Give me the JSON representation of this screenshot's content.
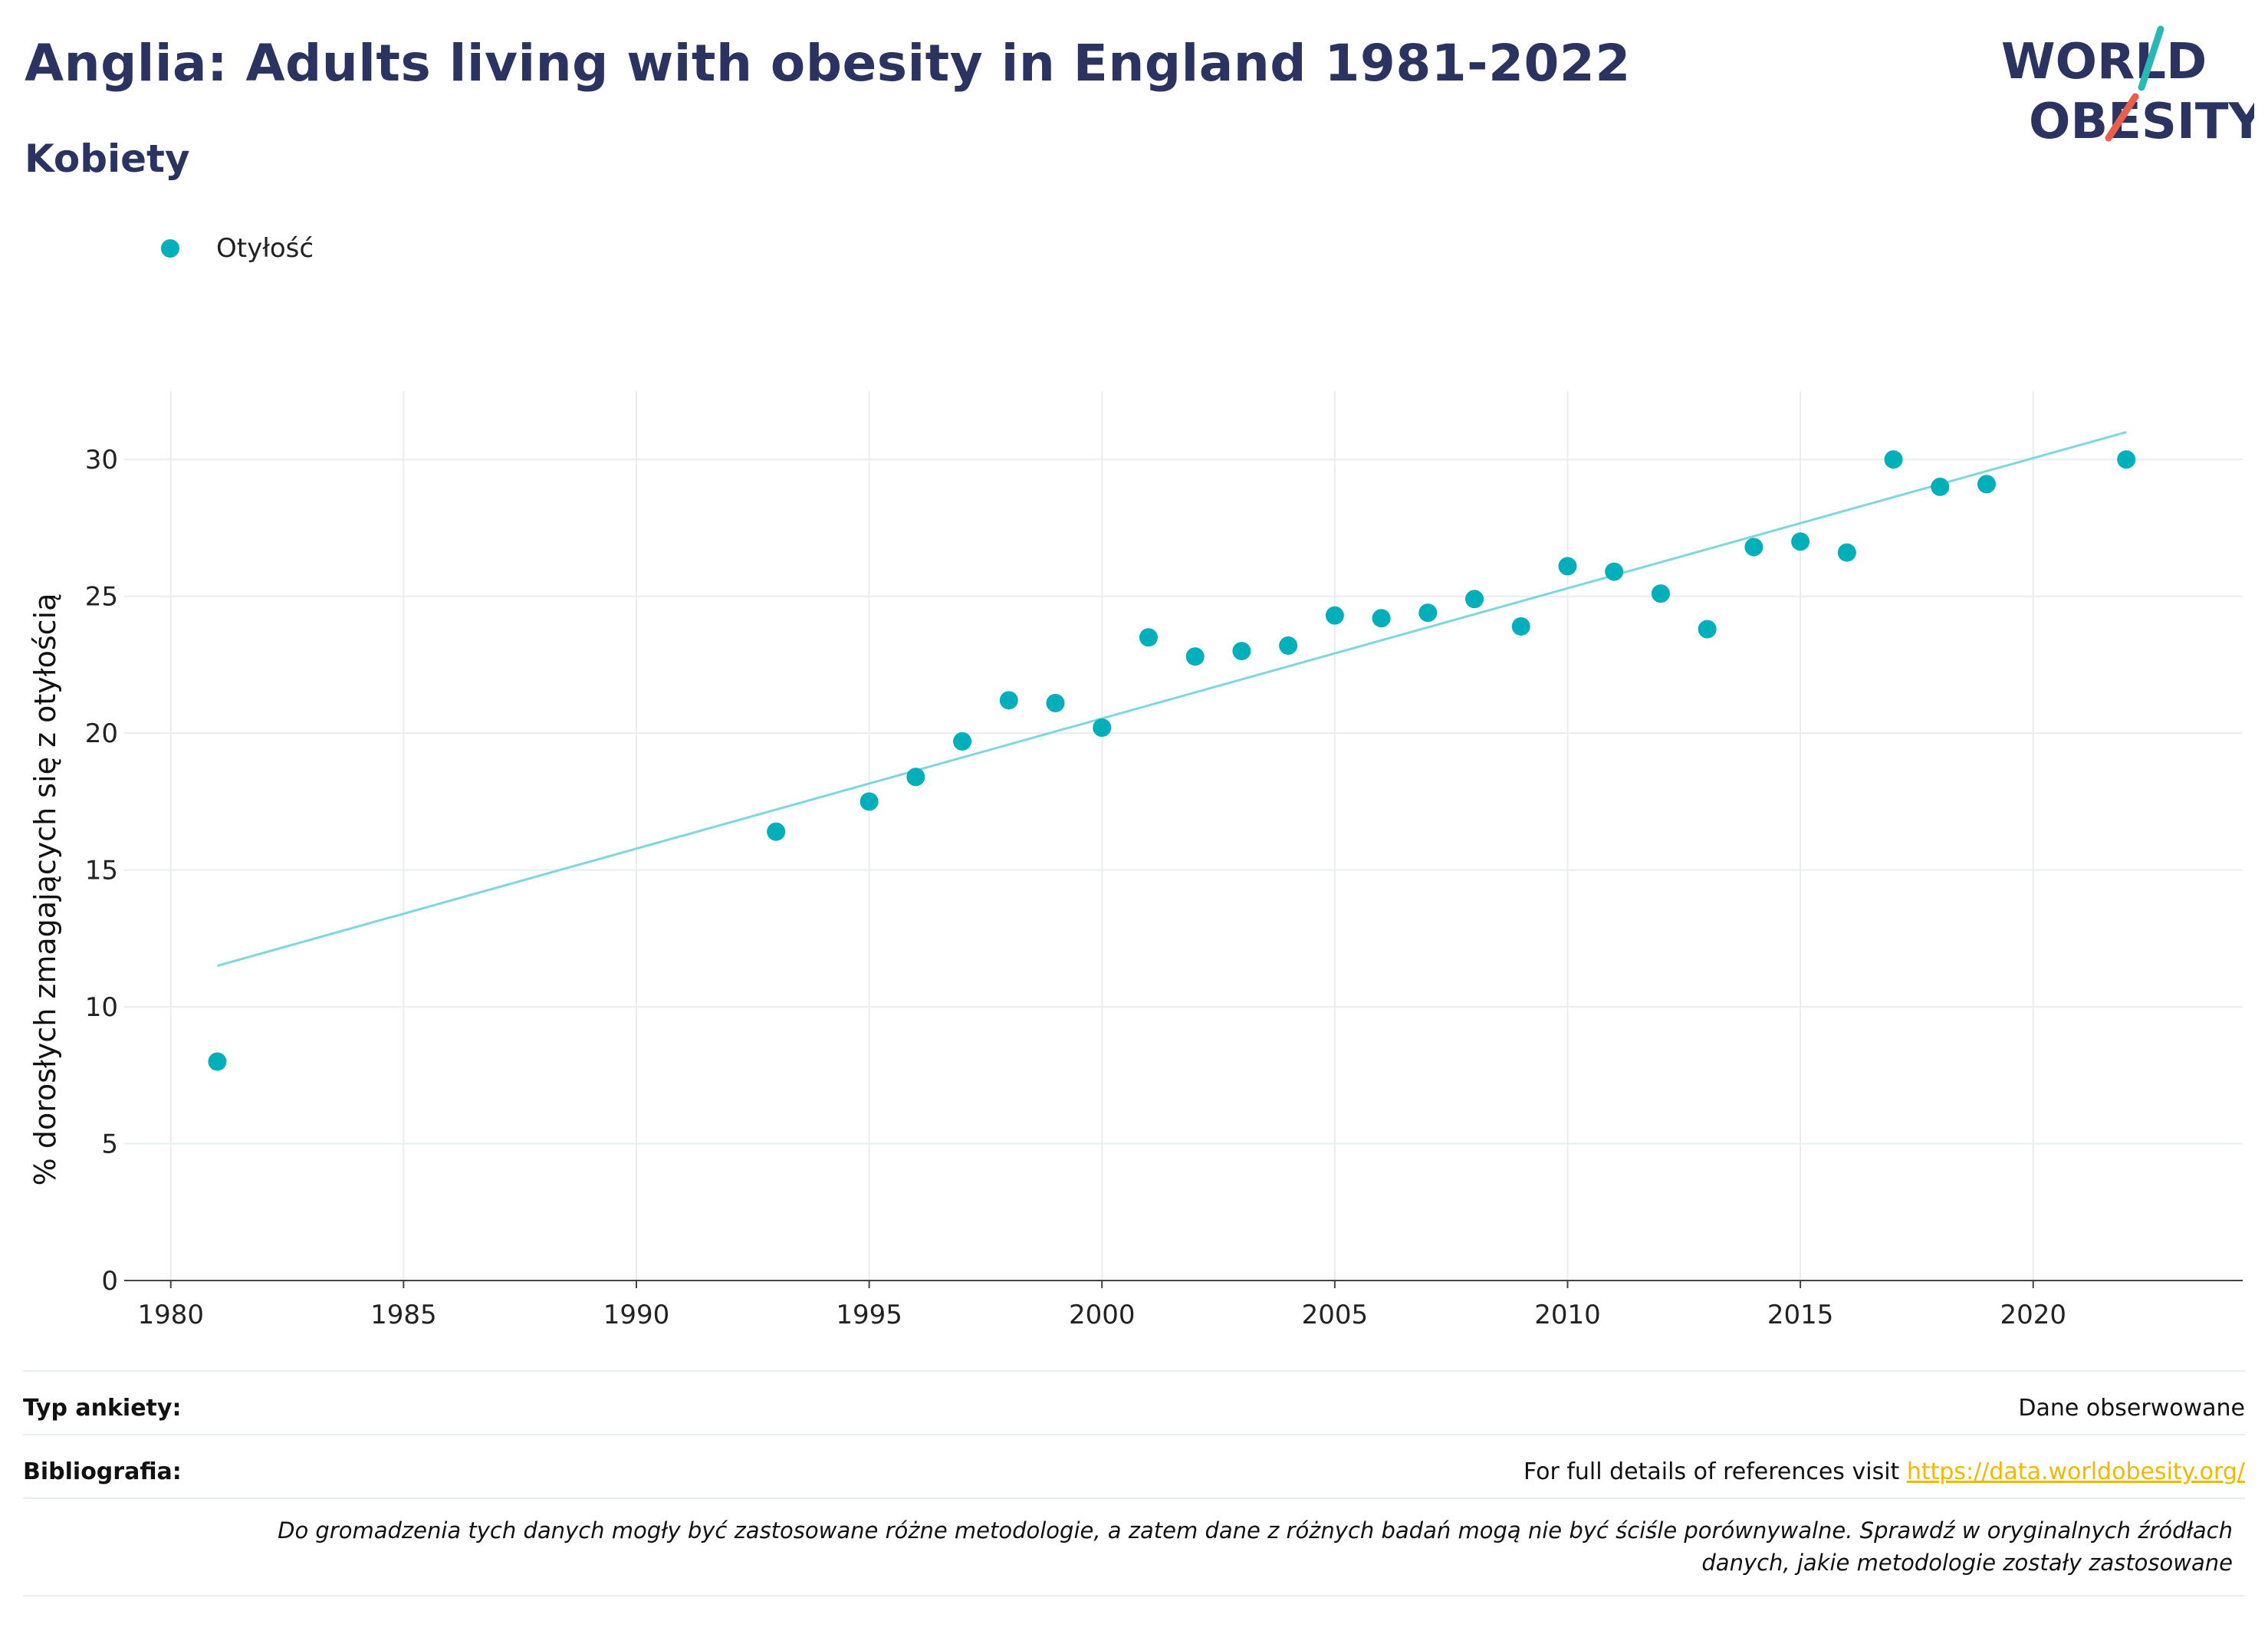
{
  "header": {
    "title": "Anglia: Adults living with obesity in England 1981-2022",
    "subtitle": "Kobiety"
  },
  "logo": {
    "line1": "WORLD",
    "line2": "OBESITY",
    "accent_teal": "#2bb7b3",
    "accent_red": "#e8604c",
    "text_color": "#2b3461"
  },
  "legend": {
    "items": [
      {
        "label": "Otyłość",
        "color": "#00afba"
      }
    ]
  },
  "chart_data": {
    "type": "scatter",
    "title": "Anglia: Adults living with obesity in England 1981-2022",
    "subtitle": "Kobiety",
    "xlabel": "",
    "ylabel": "% dorosłych zmagających się z otyłością",
    "xlim": [
      1979,
      2024.5
    ],
    "ylim": [
      0,
      32.5
    ],
    "x_ticks": [
      1980,
      1985,
      1990,
      1995,
      2000,
      2005,
      2010,
      2015,
      2020
    ],
    "y_ticks": [
      0,
      5,
      10,
      15,
      20,
      25,
      30
    ],
    "grid": true,
    "legend_position": "top-left",
    "series": [
      {
        "name": "Otyłość",
        "color": "#00afba",
        "x": [
          1981,
          1993,
          1995,
          1996,
          1997,
          1998,
          1999,
          2000,
          2001,
          2002,
          2003,
          2004,
          2005,
          2006,
          2007,
          2008,
          2009,
          2010,
          2011,
          2012,
          2013,
          2014,
          2015,
          2016,
          2017,
          2018,
          2019,
          2022
        ],
        "y": [
          8.0,
          16.4,
          17.5,
          18.4,
          19.7,
          21.2,
          21.1,
          20.2,
          23.5,
          22.8,
          23.0,
          23.2,
          24.3,
          24.2,
          24.4,
          24.9,
          23.9,
          26.1,
          25.9,
          25.1,
          23.8,
          26.8,
          27.0,
          26.6,
          30.0,
          29.0,
          29.1,
          30.0
        ]
      }
    ],
    "trendline": {
      "color": "#7dd7dc",
      "x": [
        1981,
        2022
      ],
      "y": [
        11.5,
        31.0
      ]
    }
  },
  "info": {
    "survey_type_key": "Typ ankiety:",
    "survey_type_value": "Dane obserwowane",
    "bibliography_key": "Bibliografia:",
    "bibliography_text": "For full details of references visit ",
    "bibliography_link": "https://data.worldobesity.org/",
    "note_line1": "Do gromadzenia tych danych mogły być zastosowane różne metodologie, a zatem dane z różnych badań mogą nie być ściśle porównywalne. Sprawdź w oryginalnych źródłach",
    "note_line2": "danych, jakie metodologie zostały zastosowane"
  }
}
